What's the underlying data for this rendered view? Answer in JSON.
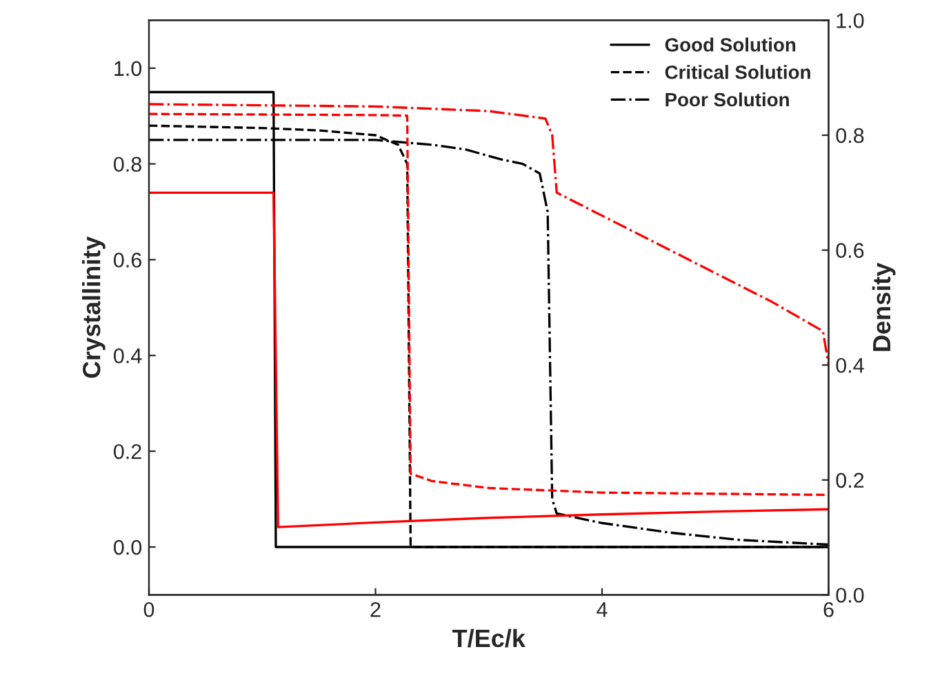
{
  "chart_data": {
    "type": "line",
    "xlabel": "T/Ec/k",
    "ylabel": "Crystallinity",
    "y2label": "Density",
    "xlim": [
      0,
      6
    ],
    "xticks": [
      0,
      2,
      4,
      6
    ],
    "ylim": [
      -0.1,
      1.1
    ],
    "yticks": [
      {
        "value": 0,
        "label": "0.0"
      },
      0.2,
      0.4,
      0.6,
      0.8,
      {
        "value": 1,
        "label": "1.0"
      }
    ],
    "y2lim": [
      0.0,
      1.0
    ],
    "y2ticks": [
      {
        "value": 0,
        "label": "0.0"
      },
      0.2,
      0.4,
      0.6,
      0.8,
      {
        "value": 1,
        "label": "1.0"
      }
    ],
    "legend": "top right",
    "grid": false,
    "series": [
      {
        "name": "Good Solution",
        "color": "#000000",
        "line_style": "solid",
        "x": [
          0,
          1.1,
          1.12,
          2,
          4,
          6
        ],
        "values": [
          0.95,
          0.95,
          0.0,
          0.0,
          0.0,
          0.0
        ]
      },
      {
        "name": "Critical Solution",
        "color": "#000000",
        "line_style": "dashed",
        "x": [
          0,
          1,
          1.5,
          2,
          2.2,
          2.28,
          2.31,
          3,
          4,
          6
        ],
        "values": [
          0.88,
          0.875,
          0.87,
          0.86,
          0.84,
          0.8,
          0.0,
          0.0,
          0.0,
          0.0
        ]
      },
      {
        "name": "Poor Solution",
        "color": "#000000",
        "line_style": "dashdot",
        "x": [
          0,
          1,
          2,
          2.5,
          2.8,
          3.1,
          3.3,
          3.45,
          3.52,
          3.56,
          3.6,
          4,
          4.6,
          5.2,
          5.6,
          6
        ],
        "values": [
          0.85,
          0.85,
          0.85,
          0.84,
          0.83,
          0.81,
          0.8,
          0.78,
          0.7,
          0.1,
          0.07,
          0.05,
          0.03,
          0.015,
          0.01,
          0.005
        ]
      },
      {
        "color": "#ff0000",
        "axis": "y2",
        "line_style": "solid",
        "x": [
          0,
          1.1,
          1.14,
          2,
          3,
          4,
          5,
          6
        ],
        "values": [
          0.7,
          0.7,
          0.118,
          0.126,
          0.134,
          0.14,
          0.145,
          0.149
        ]
      },
      {
        "color": "#ff0000",
        "axis": "y2",
        "line_style": "dashed",
        "x": [
          0,
          1,
          2,
          2.28,
          2.31,
          2.5,
          3,
          4,
          5,
          6
        ],
        "values": [
          0.837,
          0.836,
          0.835,
          0.834,
          0.211,
          0.198,
          0.186,
          0.178,
          0.176,
          0.174
        ]
      },
      {
        "color": "#ff0000",
        "axis": "y2",
        "line_style": "dashdot",
        "x": [
          0,
          1,
          2,
          3,
          3.5,
          3.56,
          3.6,
          4,
          4.5,
          5,
          5.5,
          5.95,
          6
        ],
        "values": [
          0.854,
          0.852,
          0.85,
          0.842,
          0.829,
          0.8,
          0.7,
          0.66,
          0.61,
          0.56,
          0.51,
          0.459,
          0.4
        ]
      }
    ]
  }
}
